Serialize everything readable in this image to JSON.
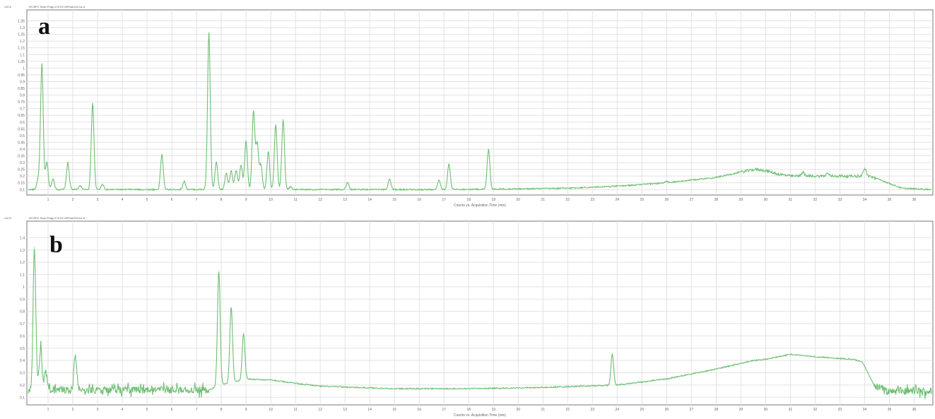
{
  "chart_data": [
    {
      "type": "line",
      "panel_label": "a",
      "header": "+EI BPC Scan Frag=170.0V WF0ad.D4.mz.d",
      "yexp": "x10 6",
      "xlabel": "Counts vs. Acquisition Time (min)",
      "x_ticks": [
        "1",
        "2",
        "3",
        "4",
        "5",
        "6",
        "7",
        "8",
        "9",
        "10",
        "11",
        "12",
        "13",
        "14",
        "15",
        "16",
        "17",
        "18",
        "19",
        "20",
        "21",
        "22",
        "23",
        "24",
        "25",
        "26",
        "27",
        "28",
        "29",
        "30",
        "31",
        "32",
        "33",
        "34",
        "35",
        "36"
      ],
      "y_ticks": [
        "0.1",
        "0.15",
        "0.2",
        "0.25",
        "0.3",
        "0.35",
        "0.4",
        "0.45",
        "0.5",
        "0.55",
        "0.6",
        "0.65",
        "0.7",
        "0.75",
        "0.8",
        "0.85",
        "0.9",
        "0.95",
        "1",
        "1.05",
        "1.1",
        "1.15",
        "1.2",
        "1.25",
        "1.3",
        "1.35"
      ],
      "xlim": [
        0.2,
        36.7
      ],
      "ylim": [
        0.07,
        1.4
      ],
      "grid": true,
      "color": "#6fbf73",
      "baseline": [
        [
          0.2,
          0.1
        ],
        [
          17,
          0.1
        ],
        [
          20,
          0.105
        ],
        [
          22,
          0.11
        ],
        [
          24,
          0.125
        ],
        [
          26,
          0.15
        ],
        [
          28,
          0.19
        ],
        [
          29,
          0.23
        ],
        [
          29.6,
          0.25
        ],
        [
          30,
          0.24
        ],
        [
          30.5,
          0.215
        ],
        [
          31,
          0.2
        ],
        [
          32,
          0.2
        ],
        [
          33.5,
          0.2
        ],
        [
          34.2,
          0.2
        ],
        [
          34.8,
          0.16
        ],
        [
          35.5,
          0.11
        ],
        [
          36.7,
          0.1
        ]
      ],
      "peaks": [
        {
          "x": 0.6,
          "y": 0.18
        },
        {
          "x": 0.75,
          "y": 1.03
        },
        {
          "x": 0.95,
          "y": 0.3
        },
        {
          "x": 1.2,
          "y": 0.18
        },
        {
          "x": 1.8,
          "y": 0.3
        },
        {
          "x": 2.3,
          "y": 0.13
        },
        {
          "x": 2.8,
          "y": 0.74
        },
        {
          "x": 3.2,
          "y": 0.14
        },
        {
          "x": 5.6,
          "y": 0.36
        },
        {
          "x": 6.5,
          "y": 0.16
        },
        {
          "x": 7.5,
          "y": 1.26
        },
        {
          "x": 7.8,
          "y": 0.3
        },
        {
          "x": 8.2,
          "y": 0.22
        },
        {
          "x": 8.4,
          "y": 0.24
        },
        {
          "x": 8.6,
          "y": 0.24
        },
        {
          "x": 8.8,
          "y": 0.28
        },
        {
          "x": 9.0,
          "y": 0.46
        },
        {
          "x": 9.3,
          "y": 0.68
        },
        {
          "x": 9.45,
          "y": 0.44
        },
        {
          "x": 9.6,
          "y": 0.28
        },
        {
          "x": 9.9,
          "y": 0.38
        },
        {
          "x": 10.2,
          "y": 0.58
        },
        {
          "x": 10.5,
          "y": 0.62
        },
        {
          "x": 10.8,
          "y": 0.12
        },
        {
          "x": 13.1,
          "y": 0.15
        },
        {
          "x": 14.8,
          "y": 0.18
        },
        {
          "x": 16.8,
          "y": 0.17
        },
        {
          "x": 17.2,
          "y": 0.29
        },
        {
          "x": 18.8,
          "y": 0.4
        },
        {
          "x": 26.0,
          "y": 0.16
        },
        {
          "x": 30.0,
          "y": 0.23
        },
        {
          "x": 31.5,
          "y": 0.23
        },
        {
          "x": 32.5,
          "y": 0.22
        },
        {
          "x": 34.0,
          "y": 0.26
        }
      ]
    },
    {
      "type": "line",
      "panel_label": "b",
      "header": "+EI BPC Scan Frag=170.0V WF0ad.B4.mz.d",
      "yexp": "x10 6",
      "xlabel": "Counts vs. Acquisition Time (min)",
      "x_ticks": [
        "1",
        "2",
        "3",
        "4",
        "5",
        "6",
        "7",
        "8",
        "9",
        "10",
        "11",
        "12",
        "13",
        "14",
        "15",
        "16",
        "17",
        "18",
        "19",
        "20",
        "21",
        "22",
        "23",
        "24",
        "25",
        "26",
        "27",
        "28",
        "29",
        "30",
        "31",
        "32",
        "33",
        "34",
        "35",
        "36"
      ],
      "y_ticks": [
        "0.1",
        "0.2",
        "0.3",
        "0.4",
        "0.5",
        "0.6",
        "0.7",
        "0.8",
        "0.9",
        "1",
        "1.1",
        "1.2",
        "1.3",
        "1.4"
      ],
      "xlim": [
        0.2,
        36.7
      ],
      "ylim": [
        0.05,
        1.5
      ],
      "grid": true,
      "color": "#6fbf73",
      "baseline": [
        [
          0.2,
          0.16
        ],
        [
          7.5,
          0.16
        ],
        [
          8.0,
          0.2
        ],
        [
          9.0,
          0.25
        ],
        [
          10.0,
          0.24
        ],
        [
          12.0,
          0.19
        ],
        [
          15.0,
          0.17
        ],
        [
          18.0,
          0.17
        ],
        [
          21.0,
          0.18
        ],
        [
          24.0,
          0.2
        ],
        [
          26.0,
          0.25
        ],
        [
          28.0,
          0.33
        ],
        [
          29.5,
          0.4
        ],
        [
          30.0,
          0.41
        ],
        [
          31.0,
          0.45
        ],
        [
          32.0,
          0.43
        ],
        [
          33.5,
          0.41
        ],
        [
          33.9,
          0.39
        ],
        [
          34.4,
          0.19
        ],
        [
          35.0,
          0.15
        ],
        [
          36.7,
          0.15
        ]
      ],
      "peaks": [
        {
          "x": 0.45,
          "y": 1.32
        },
        {
          "x": 0.7,
          "y": 0.5
        },
        {
          "x": 0.9,
          "y": 0.32
        },
        {
          "x": 2.1,
          "y": 0.44
        },
        {
          "x": 7.9,
          "y": 1.13
        },
        {
          "x": 8.4,
          "y": 0.83
        },
        {
          "x": 8.9,
          "y": 0.62
        },
        {
          "x": 23.8,
          "y": 0.45
        }
      ]
    }
  ]
}
